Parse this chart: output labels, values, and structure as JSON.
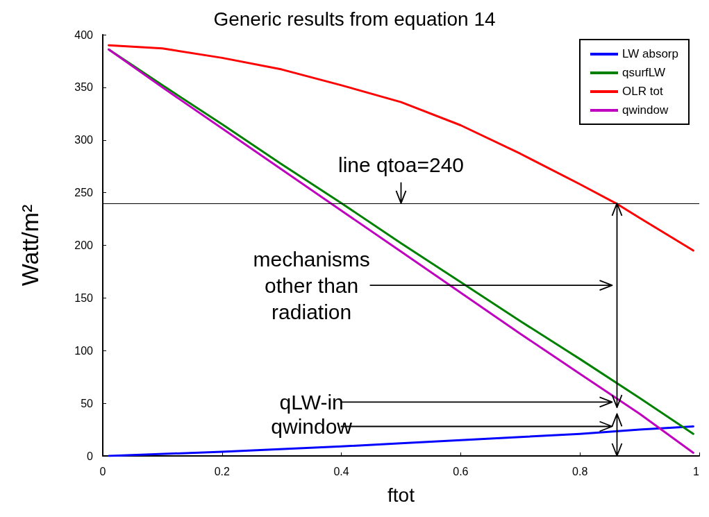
{
  "chart_data": {
    "type": "line",
    "title": "Generic results from equation 14",
    "xlabel": "ftot",
    "ylabel": "Watt/m²",
    "xlim": [
      0,
      1
    ],
    "xticks": [
      0,
      0.2,
      0.4,
      0.6,
      0.8,
      1
    ],
    "ylim": [
      0,
      400
    ],
    "yticks": [
      0,
      50,
      100,
      150,
      200,
      250,
      300,
      350,
      400
    ],
    "grid": false,
    "legend": "top right",
    "marker": "none",
    "line_style": "solid",
    "series": [
      {
        "name": "LW absorp",
        "color": "#0000ff",
        "x": [
          0.01,
          0.2,
          0.4,
          0.5,
          0.6,
          0.7,
          0.8,
          0.9,
          0.99
        ],
        "values": [
          0,
          4,
          9,
          12,
          15,
          18,
          21,
          25,
          28
        ]
      },
      {
        "name": "qsurfLW",
        "color": "#008000",
        "x": [
          0.01,
          0.1,
          0.2,
          0.3,
          0.4,
          0.5,
          0.6,
          0.7,
          0.8,
          0.9,
          0.99
        ],
        "values": [
          386,
          352,
          315,
          277,
          240,
          202,
          165,
          128,
          92,
          55,
          21
        ]
      },
      {
        "name": "OLR tot",
        "color": "#ff0000",
        "x": [
          0.01,
          0.1,
          0.2,
          0.3,
          0.4,
          0.5,
          0.6,
          0.7,
          0.8,
          0.86,
          0.9,
          0.99
        ],
        "values": [
          390,
          387,
          378,
          367,
          352,
          336,
          314,
          287,
          258,
          240,
          226,
          195
        ]
      },
      {
        "name": "qwindow",
        "color": "#bf00bf",
        "x": [
          0.01,
          0.1,
          0.2,
          0.3,
          0.4,
          0.5,
          0.6,
          0.7,
          0.8,
          0.9,
          0.99
        ],
        "values": [
          386,
          350,
          311,
          272,
          233,
          194,
          155,
          116,
          78,
          40,
          3
        ]
      }
    ],
    "ref_lines": [
      {
        "axis": "y",
        "value": 240,
        "label": "line qtoa=240",
        "color": "#000000"
      }
    ],
    "annotations": [
      "mechanisms\nother than\nradiation",
      "qLW-in",
      "qwindow"
    ]
  }
}
